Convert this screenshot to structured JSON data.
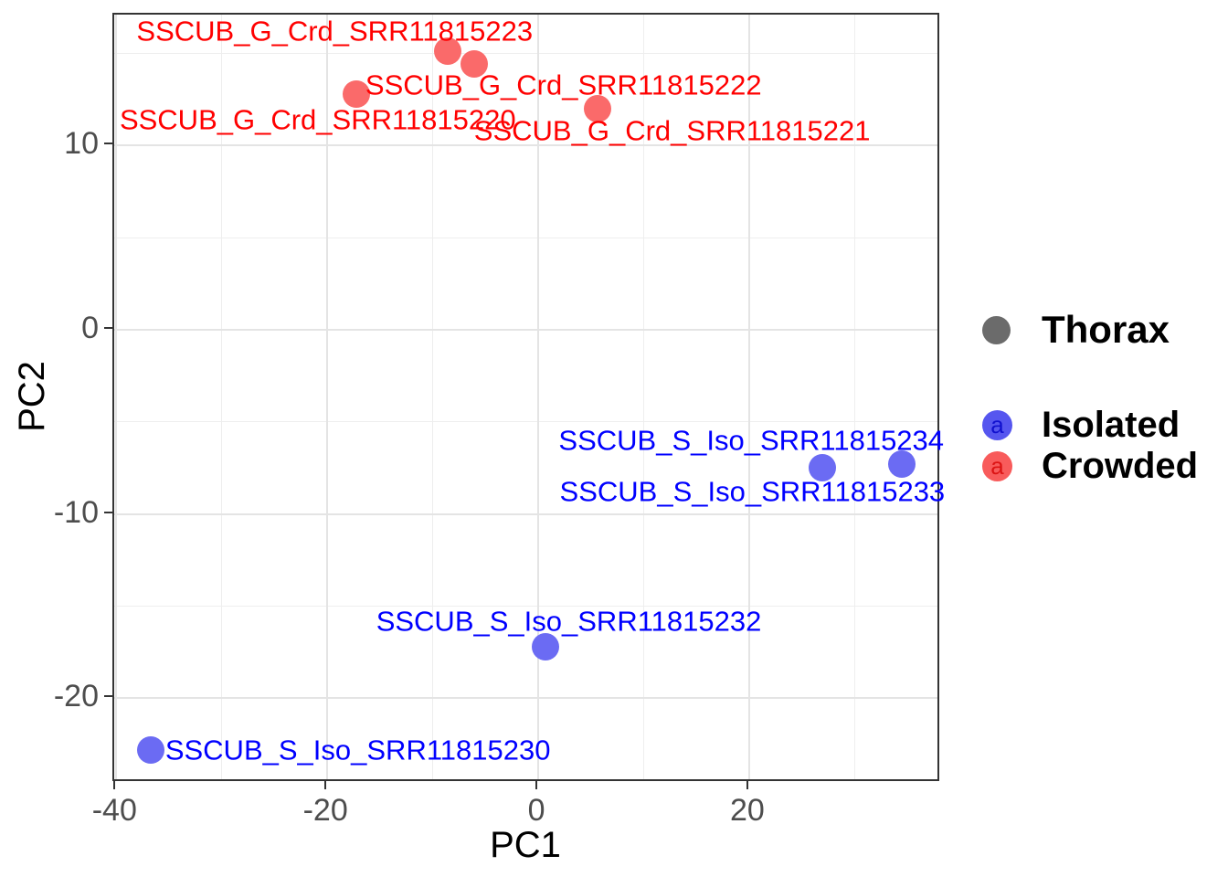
{
  "chart_data": {
    "type": "scatter",
    "title": "",
    "xlabel": "PC1",
    "ylabel": "PC2",
    "xlim": [
      -40.2,
      38.2
    ],
    "ylim": [
      -24.6,
      17.1
    ],
    "x_ticks": [
      -40,
      -20,
      0,
      20
    ],
    "y_ticks": [
      10,
      0,
      -10,
      -20
    ],
    "grid": "major+minor",
    "series": [
      {
        "name": "Crowded",
        "point_color": "#fa6a6a",
        "label_color": "#ff0000",
        "points": [
          {
            "label": "SSCUB_G_Crd_SRR11815223",
            "x": -8.6,
            "y": 15.1,
            "label_x": -19.3,
            "label_y": 16.2
          },
          {
            "label": "SSCUB_G_Crd_SRR11815222",
            "x": -6.1,
            "y": 14.4,
            "label_x": 2.4,
            "label_y": 13.3
          },
          {
            "label": "SSCUB_G_Crd_SRR11815220",
            "x": -17.2,
            "y": 12.8,
            "label_x": -20.9,
            "label_y": 11.4
          },
          {
            "label": "SSCUB_G_Crd_SRR11815221",
            "x": 5.6,
            "y": 12.0,
            "label_x": 12.7,
            "label_y": 10.8
          }
        ]
      },
      {
        "name": "Isolated",
        "point_color": "#6b6bf3",
        "label_color": "#0000ff",
        "points": [
          {
            "label": "SSCUB_S_Iso_SRR11815234",
            "x": 34.5,
            "y": -7.3,
            "label_x": 20.2,
            "label_y": -6.0
          },
          {
            "label": "SSCUB_S_Iso_SRR11815233",
            "x": 26.9,
            "y": -7.5,
            "label_x": 20.3,
            "label_y": -8.8
          },
          {
            "label": "SSCUB_S_Iso_SRR11815232",
            "x": 0.7,
            "y": -17.2,
            "label_x": 2.9,
            "label_y": -15.8
          },
          {
            "label": "SSCUB_S_Iso_SRR11815230",
            "x": -36.7,
            "y": -22.8,
            "label_x": -17.1,
            "label_y": -22.8
          }
        ]
      }
    ],
    "legend": {
      "position": "right",
      "groups": [
        {
          "entries": [
            {
              "label": "Thorax",
              "key": "circle",
              "key_color": "#6b6b6b",
              "key_letter": "",
              "letter_color": ""
            }
          ]
        },
        {
          "entries": [
            {
              "label": "Isolated",
              "key": "circle-letter",
              "key_color": "#5656ef",
              "key_letter": "a",
              "letter_color": "#1111ce"
            },
            {
              "label": "Crowded",
              "key": "circle-letter",
              "key_color": "#f85b5b",
              "key_letter": "a",
              "letter_color": "#dc1414"
            }
          ]
        }
      ]
    }
  }
}
